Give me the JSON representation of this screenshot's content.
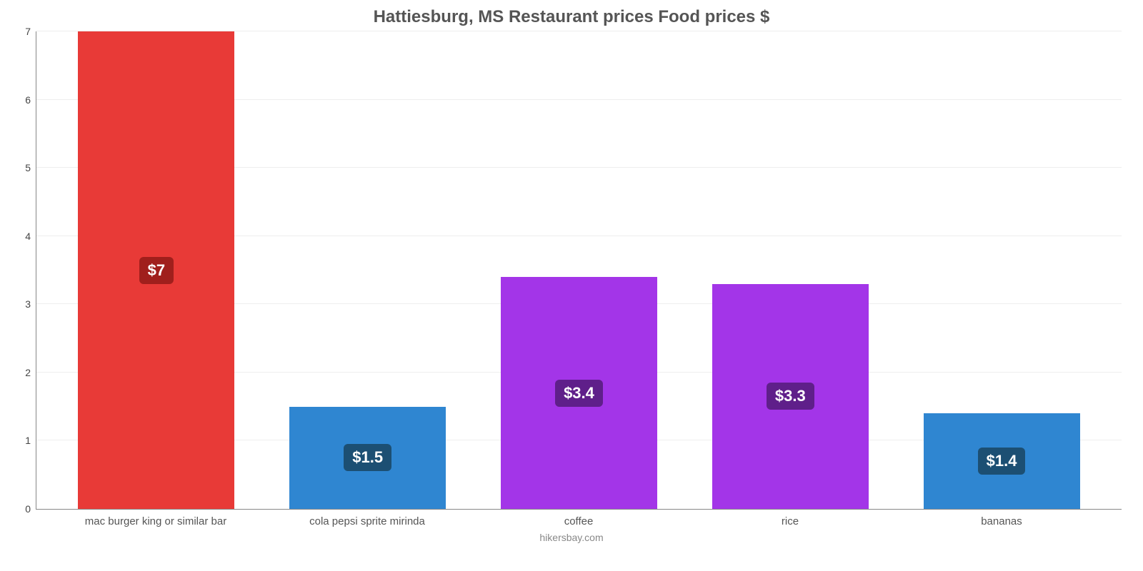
{
  "chart": {
    "type": "bar",
    "title": "Hattiesburg, MS Restaurant prices Food prices $",
    "title_color": "#555555",
    "title_fontsize": 24,
    "footer": "hikersbay.com",
    "footer_color": "#888888",
    "background_color": "#ffffff",
    "grid_color": "#eeeeee",
    "axis_color": "#888888",
    "tick_label_color": "#444444",
    "xlabel_color": "#555555",
    "ylim_min": 0,
    "ylim_max": 7,
    "ytick_step": 1,
    "bar_width_pct": 74,
    "value_label_fontsize": 22,
    "categories": [
      "mac burger king or similar bar",
      "cola pepsi sprite mirinda",
      "coffee",
      "rice",
      "bananas"
    ],
    "values": [
      7,
      1.5,
      3.4,
      3.3,
      1.4
    ],
    "value_labels": [
      "$7",
      "$1.5",
      "$3.4",
      "$3.3",
      "$1.4"
    ],
    "bar_colors": [
      "#e83a37",
      "#2f86d1",
      "#a335e8",
      "#a335e8",
      "#2f86d1"
    ],
    "badge_colors": [
      "#a01f1c",
      "#1c4f73",
      "#5f1f8a",
      "#5f1f8a",
      "#1c4f73"
    ]
  }
}
